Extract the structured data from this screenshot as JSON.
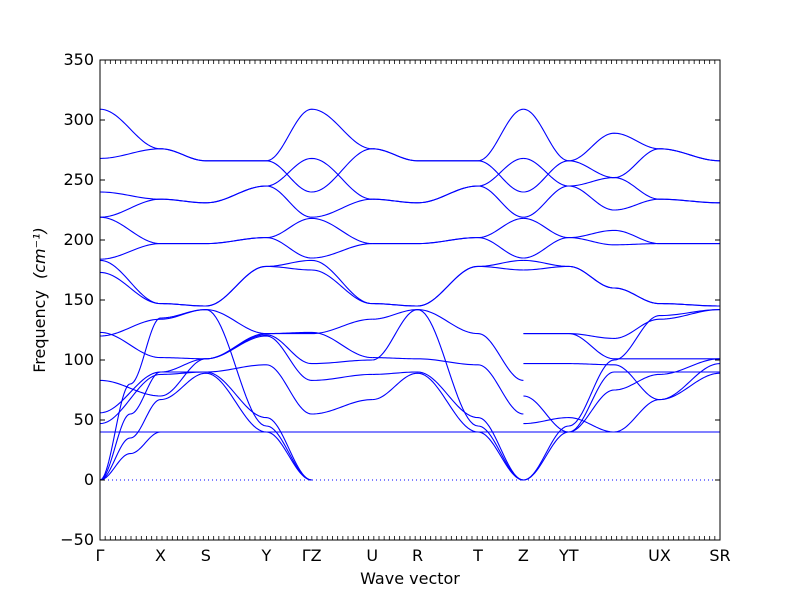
{
  "chart_data": {
    "type": "line",
    "xlabel": "Wave vector",
    "ylabel": "Frequency",
    "ylabel_unit": "(cm⁻¹)",
    "ylim": [
      -50,
      350
    ],
    "yticks": [
      -50,
      0,
      50,
      100,
      150,
      200,
      250,
      300,
      350
    ],
    "grid": false,
    "zero_line": {
      "y": 0,
      "style": "dotted",
      "color": "#0000ff"
    },
    "line_color": "#0000ff",
    "path_points": [
      {
        "label": "Γ",
        "x": 0.0
      },
      {
        "label": "X",
        "x": 1.0
      },
      {
        "label": "S",
        "x": 1.75
      },
      {
        "label": "Y",
        "x": 2.75
      },
      {
        "label": "ΓZ",
        "x": 3.5
      },
      {
        "label": "U",
        "x": 4.5
      },
      {
        "label": "R",
        "x": 5.25
      },
      {
        "label": "T",
        "x": 6.25
      },
      {
        "label": "Z",
        "x": 7.0
      },
      {
        "label": "YT",
        "x": 7.75
      },
      {
        "label": "UX",
        "x": 9.25
      },
      {
        "label": "SR",
        "x": 10.25
      }
    ],
    "xlim": [
      0,
      10.25
    ],
    "series": [
      {
        "values": [
          [
            0,
            0
          ],
          [
            0.5,
            35
          ],
          [
            1,
            67
          ],
          [
            1.75,
            89
          ],
          [
            2.75,
            40
          ],
          [
            3.5,
            0
          ]
        ]
      },
      {
        "values": [
          [
            0,
            0
          ],
          [
            0.5,
            22
          ],
          [
            1,
            40
          ],
          [
            1.75,
            40
          ],
          [
            2.75,
            40
          ],
          [
            3.5,
            40
          ]
        ]
      },
      {
        "values": [
          [
            0,
            0
          ],
          [
            0.5,
            55
          ],
          [
            1,
            90
          ],
          [
            1.75,
            90
          ],
          [
            2.75,
            52
          ],
          [
            3.5,
            0
          ]
        ]
      },
      {
        "values": [
          [
            0,
            0
          ],
          [
            0.5,
            80
          ],
          [
            1,
            135
          ],
          [
            1.75,
            142
          ],
          [
            2.75,
            45
          ],
          [
            3.5,
            0
          ]
        ]
      },
      {
        "values": [
          [
            0,
            40
          ],
          [
            1,
            40
          ],
          [
            1.75,
            40
          ],
          [
            2.75,
            40
          ],
          [
            3.5,
            40
          ],
          [
            4.5,
            40
          ],
          [
            5.25,
            40
          ],
          [
            6.25,
            40
          ],
          [
            7,
            40
          ],
          [
            7.75,
            40
          ],
          [
            9.25,
            40
          ],
          [
            10.25,
            40
          ]
        ]
      },
      {
        "values": [
          [
            0,
            47
          ],
          [
            1,
            88
          ],
          [
            1.75,
            90
          ],
          [
            2.75,
            96
          ],
          [
            3.5,
            55
          ],
          [
            4.5,
            67
          ]
        ]
      },
      {
        "values": [
          [
            0,
            56
          ],
          [
            1,
            90
          ],
          [
            1.75,
            101
          ],
          [
            2.75,
            120
          ],
          [
            3.5,
            83
          ],
          [
            4.5,
            88
          ]
        ]
      },
      {
        "values": [
          [
            0,
            83
          ],
          [
            1,
            70
          ],
          [
            1.75,
            101
          ],
          [
            2.75,
            121
          ],
          [
            3.5,
            97
          ],
          [
            4.5,
            100
          ]
        ]
      },
      {
        "values": [
          [
            0,
            120
          ],
          [
            1,
            134
          ],
          [
            1.75,
            142
          ],
          [
            2.75,
            122
          ],
          [
            3.5,
            122
          ],
          [
            4.5,
            134
          ]
        ]
      },
      {
        "values": [
          [
            0,
            123
          ],
          [
            1,
            102
          ],
          [
            1.75,
            101
          ],
          [
            2.75,
            122
          ],
          [
            3.5,
            123
          ],
          [
            4.5,
            102
          ]
        ]
      },
      {
        "values": [
          [
            0,
            173
          ],
          [
            1,
            147
          ],
          [
            1.75,
            145
          ],
          [
            2.75,
            178
          ],
          [
            3.5,
            183
          ],
          [
            4.5,
            147
          ]
        ]
      },
      {
        "values": [
          [
            0,
            183
          ],
          [
            1,
            147
          ],
          [
            1.75,
            145
          ],
          [
            2.75,
            178
          ],
          [
            3.5,
            175
          ],
          [
            4.5,
            147
          ]
        ]
      },
      {
        "values": [
          [
            0,
            184
          ],
          [
            1,
            197
          ],
          [
            1.75,
            197
          ],
          [
            2.75,
            202
          ],
          [
            3.5,
            218
          ],
          [
            4.5,
            197
          ]
        ]
      },
      {
        "values": [
          [
            0,
            219
          ],
          [
            1,
            197
          ],
          [
            1.75,
            197
          ],
          [
            2.75,
            202
          ],
          [
            3.5,
            185
          ],
          [
            4.5,
            197
          ]
        ]
      },
      {
        "values": [
          [
            0,
            219
          ],
          [
            1,
            234
          ],
          [
            1.75,
            231
          ],
          [
            2.75,
            245
          ],
          [
            3.5,
            219
          ],
          [
            4.5,
            234
          ]
        ]
      },
      {
        "values": [
          [
            0,
            240
          ],
          [
            1,
            234
          ],
          [
            1.75,
            231
          ],
          [
            2.75,
            245
          ],
          [
            3.5,
            268
          ],
          [
            4.5,
            234
          ]
        ]
      },
      {
        "values": [
          [
            0,
            268
          ],
          [
            1,
            276
          ],
          [
            1.75,
            266
          ],
          [
            2.75,
            266
          ],
          [
            3.5,
            240
          ],
          [
            4.5,
            276
          ]
        ]
      },
      {
        "values": [
          [
            0,
            309
          ],
          [
            1,
            276
          ],
          [
            1.75,
            266
          ],
          [
            2.75,
            266
          ],
          [
            3.5,
            309
          ],
          [
            4.5,
            276
          ]
        ]
      },
      {
        "values": [
          [
            4.5,
            67
          ],
          [
            5.25,
            89
          ],
          [
            6.25,
            40
          ],
          [
            7,
            0
          ]
        ]
      },
      {
        "values": [
          [
            4.5,
            88
          ],
          [
            5.25,
            90
          ],
          [
            6.25,
            52
          ],
          [
            7,
            0
          ]
        ]
      },
      {
        "values": [
          [
            4.5,
            100
          ],
          [
            5.25,
            142
          ],
          [
            6.25,
            45
          ],
          [
            7,
            0
          ]
        ]
      },
      {
        "values": [
          [
            4.5,
            134
          ],
          [
            5.25,
            142
          ],
          [
            6.25,
            122
          ],
          [
            7,
            83
          ]
        ]
      },
      {
        "values": [
          [
            4.5,
            102
          ],
          [
            5.25,
            101
          ],
          [
            6.25,
            96
          ],
          [
            7,
            55
          ]
        ]
      },
      {
        "values": [
          [
            4.5,
            147
          ],
          [
            5.25,
            145
          ],
          [
            6.25,
            178
          ],
          [
            7,
            183
          ]
        ]
      },
      {
        "values": [
          [
            4.5,
            147
          ],
          [
            5.25,
            145
          ],
          [
            6.25,
            178
          ],
          [
            7,
            175
          ]
        ]
      },
      {
        "values": [
          [
            4.5,
            197
          ],
          [
            5.25,
            197
          ],
          [
            6.25,
            202
          ],
          [
            7,
            218
          ]
        ]
      },
      {
        "values": [
          [
            4.5,
            197
          ],
          [
            5.25,
            197
          ],
          [
            6.25,
            202
          ],
          [
            7,
            185
          ]
        ]
      },
      {
        "values": [
          [
            4.5,
            234
          ],
          [
            5.25,
            231
          ],
          [
            6.25,
            245
          ],
          [
            7,
            219
          ]
        ]
      },
      {
        "values": [
          [
            4.5,
            234
          ],
          [
            5.25,
            231
          ],
          [
            6.25,
            245
          ],
          [
            7,
            268
          ]
        ]
      },
      {
        "values": [
          [
            4.5,
            276
          ],
          [
            5.25,
            266
          ],
          [
            6.25,
            266
          ],
          [
            7,
            240
          ]
        ]
      },
      {
        "values": [
          [
            4.5,
            276
          ],
          [
            5.25,
            266
          ],
          [
            6.25,
            266
          ],
          [
            7,
            309
          ]
        ]
      },
      {
        "values": [
          [
            7,
            0
          ],
          [
            7.75,
            40
          ],
          [
            8.5,
            90
          ],
          [
            9.25,
            90
          ],
          [
            10.25,
            90
          ]
        ]
      },
      {
        "values": [
          [
            7,
            0
          ],
          [
            7.75,
            45
          ],
          [
            8.5,
            100
          ],
          [
            9.25,
            137
          ],
          [
            10.25,
            142
          ]
        ]
      },
      {
        "values": [
          [
            7,
            47
          ],
          [
            7.75,
            52
          ],
          [
            8.5,
            40
          ],
          [
            9.25,
            67
          ],
          [
            10.25,
            97
          ]
        ]
      },
      {
        "values": [
          [
            7,
            70
          ],
          [
            7.75,
            40
          ],
          [
            8.5,
            75
          ],
          [
            9.25,
            88
          ],
          [
            10.25,
            101
          ]
        ]
      },
      {
        "values": [
          [
            7,
            97
          ],
          [
            7.75,
            97
          ],
          [
            8.5,
            96
          ],
          [
            9.25,
            67
          ],
          [
            10.25,
            89
          ]
        ]
      },
      {
        "values": [
          [
            7,
            122
          ],
          [
            7.75,
            122
          ],
          [
            8.5,
            101
          ],
          [
            9.25,
            101
          ],
          [
            10.25,
            101
          ]
        ]
      },
      {
        "values": [
          [
            7,
            122
          ],
          [
            7.75,
            122
          ],
          [
            8.5,
            118
          ],
          [
            9.25,
            134
          ],
          [
            10.25,
            142
          ]
        ]
      },
      {
        "values": [
          [
            7,
            183
          ],
          [
            7.75,
            178
          ],
          [
            8.5,
            160
          ],
          [
            9.25,
            147
          ],
          [
            10.25,
            145
          ]
        ]
      },
      {
        "values": [
          [
            7,
            175
          ],
          [
            7.75,
            178
          ],
          [
            8.5,
            160
          ],
          [
            9.25,
            147
          ],
          [
            10.25,
            145
          ]
        ]
      },
      {
        "values": [
          [
            7,
            218
          ],
          [
            7.75,
            202
          ],
          [
            8.5,
            208
          ],
          [
            9.25,
            197
          ],
          [
            10.25,
            197
          ]
        ]
      },
      {
        "values": [
          [
            7,
            185
          ],
          [
            7.75,
            202
          ],
          [
            8.5,
            196
          ],
          [
            9.25,
            197
          ],
          [
            10.25,
            197
          ]
        ]
      },
      {
        "values": [
          [
            7,
            219
          ],
          [
            7.75,
            245
          ],
          [
            8.5,
            252
          ],
          [
            9.25,
            234
          ],
          [
            10.25,
            231
          ]
        ]
      },
      {
        "values": [
          [
            7,
            268
          ],
          [
            7.75,
            245
          ],
          [
            8.5,
            225
          ],
          [
            9.25,
            234
          ],
          [
            10.25,
            231
          ]
        ]
      },
      {
        "values": [
          [
            7,
            240
          ],
          [
            7.75,
            266
          ],
          [
            8.5,
            252
          ],
          [
            9.25,
            276
          ],
          [
            10.25,
            266
          ]
        ]
      },
      {
        "values": [
          [
            7,
            309
          ],
          [
            7.75,
            266
          ],
          [
            8.5,
            289
          ],
          [
            9.25,
            276
          ],
          [
            10.25,
            266
          ]
        ]
      }
    ]
  }
}
